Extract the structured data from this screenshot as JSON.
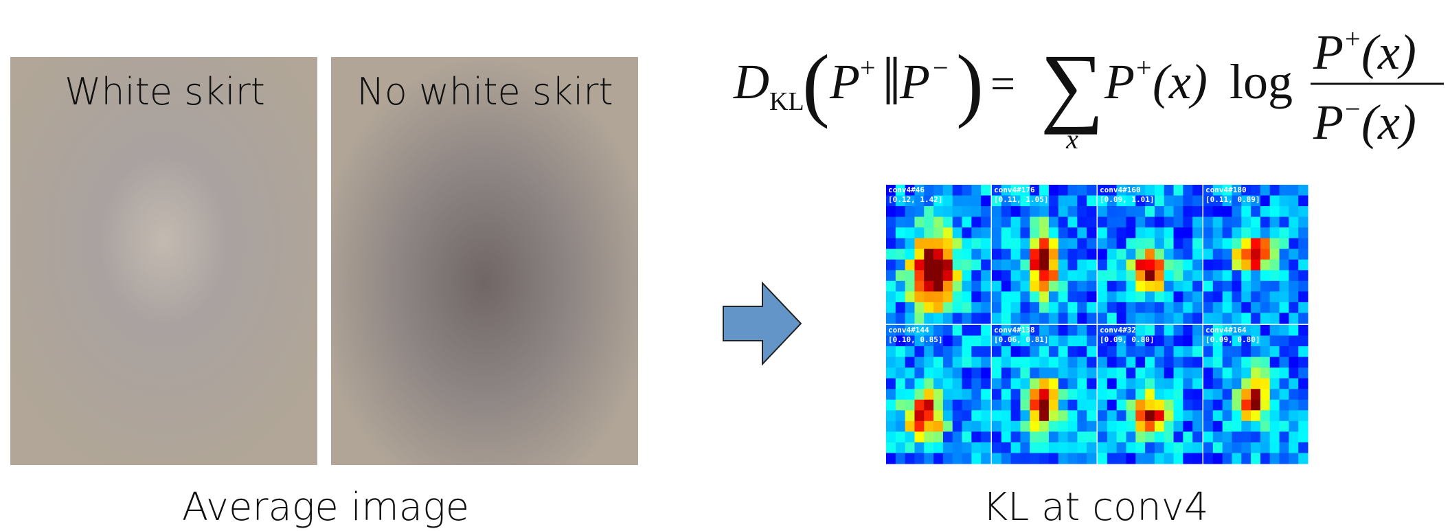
{
  "left": {
    "panels": [
      "White skirt",
      "No white skirt"
    ],
    "caption": "Average image"
  },
  "formula": [
    "D",
    "KL",
    "(",
    "P",
    "+",
    "‖",
    "P",
    "−",
    ")",
    "=",
    "∑",
    "x",
    "P",
    "+",
    "(x)",
    "log",
    "P",
    "+",
    "(x)",
    "P",
    "−",
    "(x)"
  ],
  "right": {
    "maps": [
      {
        "layer": "conv4#46",
        "range": "[0.12, 1.42]"
      },
      {
        "layer": "conv4#176",
        "range": "[0.11, 1.05]"
      },
      {
        "layer": "conv4#160",
        "range": "[0.09, 1.01]"
      },
      {
        "layer": "conv4#180",
        "range": "[0.11, 0.89]"
      },
      {
        "layer": "conv4#144",
        "range": "[0.10, 0.85]"
      },
      {
        "layer": "conv4#138",
        "range": "[0.06, 0.81]"
      },
      {
        "layer": "conv4#32",
        "range": "[0.09, 0.80]"
      },
      {
        "layer": "conv4#164",
        "range": "[0.09, 0.80]"
      }
    ],
    "caption": "KL at conv4"
  }
}
